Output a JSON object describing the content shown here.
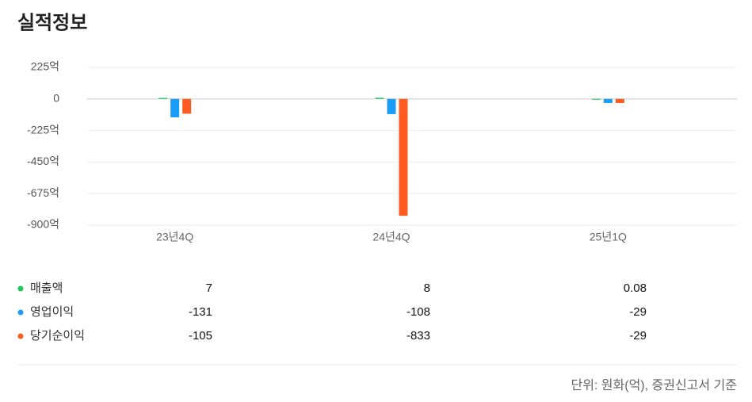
{
  "chart_data": {
    "type": "bar",
    "title": "실적정보",
    "categories": [
      "23년4Q",
      "24년4Q",
      "25년1Q"
    ],
    "series": [
      {
        "name": "매출액",
        "color": "#1ec85a",
        "values": [
          7,
          8,
          0.08
        ]
      },
      {
        "name": "영업이익",
        "color": "#1a9dfa",
        "values": [
          -131,
          -108,
          -29
        ]
      },
      {
        "name": "당기순이익",
        "color": "#ff5a22",
        "values": [
          -105,
          -833,
          -29
        ]
      }
    ],
    "ylim": [
      -900,
      225
    ],
    "yticks": [
      {
        "value": 225,
        "label": "225억"
      },
      0,
      {
        "value": -225,
        "label": "-225억"
      },
      {
        "value": -450,
        "label": "-450억"
      },
      {
        "value": -675,
        "label": "-675억"
      },
      {
        "value": -900,
        "label": "-900억"
      }
    ],
    "grid": true,
    "note": "단위: 원화(억), 증권신고서 기준"
  }
}
